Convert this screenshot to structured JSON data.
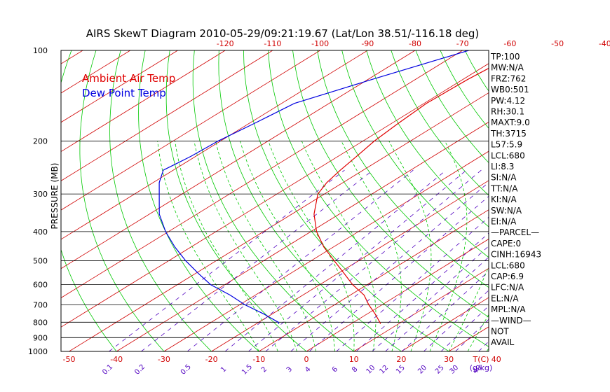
{
  "chart_data": {
    "type": "line",
    "title": "AIRS SkewT Diagram 2010-05-29/09:21:19.67 (Lat/Lon 38.51/-116.18 deg)",
    "ylabel": "PRESSURE (MB)",
    "y_scale": "log",
    "ylim": [
      1000,
      100
    ],
    "pressure_ticks": [
      100,
      200,
      300,
      400,
      500,
      600,
      700,
      800,
      900,
      1000
    ],
    "bottom_temp_ticks": [
      -50,
      -40,
      -30,
      -20,
      -10,
      0,
      10,
      20,
      30,
      40
    ],
    "top_temp_ticks": [
      -120,
      -110,
      -100,
      -90,
      -80,
      -70,
      -60,
      -50,
      -40
    ],
    "xlabel_bottom": "T(C)",
    "mixing_ratio_ticks": [
      "0.1",
      "0.2",
      "0.5",
      "1",
      "1.5",
      "2",
      "3",
      "4",
      "6",
      "8",
      "10",
      "12",
      "15",
      "20",
      "25",
      "30",
      "40"
    ],
    "mixing_ratio_unit": "(g/kg)",
    "legend": [
      {
        "label": "Ambient Air Temp",
        "color": "#e00000"
      },
      {
        "label": "Dew Point Temp",
        "color": "#0000e0"
      }
    ],
    "series": [
      {
        "name": "Ambient Air Temp",
        "color": "#e00000",
        "points": [
          [
            100,
            -57.4
          ],
          [
            125,
            -59.0
          ],
          [
            150,
            -59.5
          ],
          [
            175,
            -58.6
          ],
          [
            200,
            -57.6
          ],
          [
            225,
            -56.1
          ],
          [
            250,
            -54.8
          ],
          [
            275,
            -53.4
          ],
          [
            300,
            -51.4
          ],
          [
            350,
            -45.3
          ],
          [
            400,
            -38.8
          ],
          [
            450,
            -32.0
          ],
          [
            500,
            -25.1
          ],
          [
            550,
            -18.8
          ],
          [
            600,
            -13.1
          ],
          [
            650,
            -7.1
          ],
          [
            700,
            -2.8
          ],
          [
            750,
            1.6
          ],
          [
            800,
            5.5
          ],
          [
            810,
            6.2
          ]
        ]
      },
      {
        "name": "Dew Point Temp",
        "color": "#0000e0",
        "points": [
          [
            100,
            -68.7
          ],
          [
            125,
            -79.2
          ],
          [
            150,
            -87.3
          ],
          [
            175,
            -88.9
          ],
          [
            200,
            -90.5
          ],
          [
            225,
            -91.0
          ],
          [
            250,
            -92.1
          ],
          [
            275,
            -88.7
          ],
          [
            300,
            -84.8
          ],
          [
            350,
            -77.9
          ],
          [
            400,
            -70.6
          ],
          [
            450,
            -63.4
          ],
          [
            500,
            -56.4
          ],
          [
            550,
            -49.5
          ],
          [
            600,
            -43.0
          ],
          [
            650,
            -35.3
          ],
          [
            700,
            -28.9
          ],
          [
            750,
            -21.9
          ],
          [
            800,
            -15.9
          ],
          [
            810,
            -15.2
          ]
        ]
      }
    ],
    "stats": [
      "TP:100",
      "MW:N/A",
      "FRZ:762",
      "WB0:501",
      "PW:4.12",
      "RH:30.1",
      "MAXT:9.0",
      "TH:3715",
      "L57:5.9",
      "LCL:680",
      "LI:8.3",
      "SI:N/A",
      "TT:N/A",
      "KI:N/A",
      "SW:N/A",
      "EI:N/A",
      "—PARCEL—",
      "CAPE:0",
      "CINH:16943",
      "LCL:680",
      "CAP:6.9",
      "LFC:N/A",
      "EL:N/A",
      "MPL:N/A",
      "—WIND—",
      "NOT",
      "AVAIL"
    ],
    "colors": {
      "isotherm": "#d00000",
      "dry_adiabat": "#00c800",
      "moist_adiabat": "#00c800",
      "mixing_ratio": "#5000c0",
      "top_axis": "#d00000",
      "bottom_axis": "#d00000"
    }
  }
}
